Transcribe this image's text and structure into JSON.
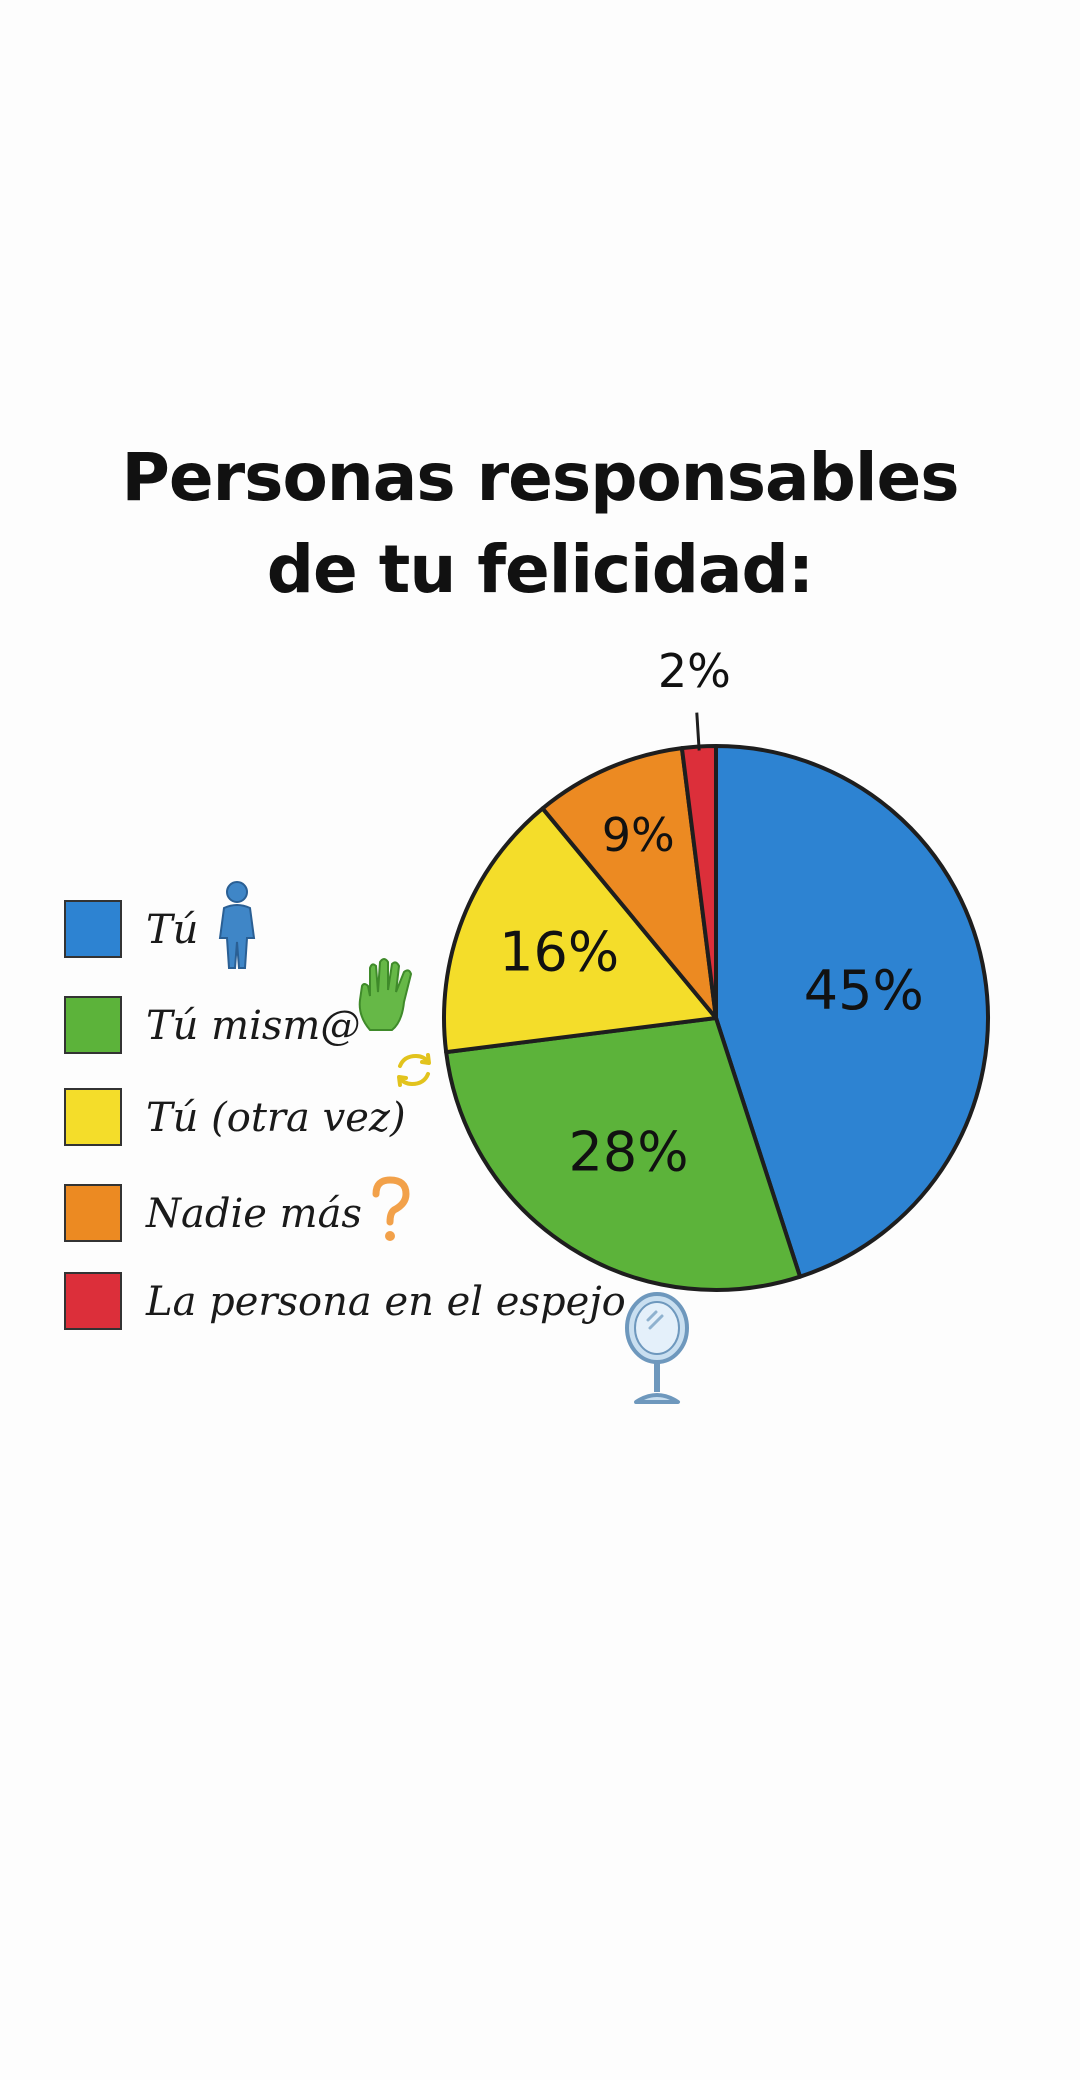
{
  "title_lines": [
    "Personas responsables",
    "de tu felicidad:"
  ],
  "chart_data": {
    "type": "pie",
    "title": "Personas responsables de tu felicidad:",
    "slices": [
      {
        "label": "Tú",
        "value": 45,
        "display": "45%",
        "color": "#2d83d2"
      },
      {
        "label": "Tú mism@",
        "value": 28,
        "display": "28%",
        "color": "#5cb33a"
      },
      {
        "label": "Tú (otra vez)",
        "value": 16,
        "display": "16%",
        "color": "#f4dd2a"
      },
      {
        "label": "Nadie más",
        "value": 9,
        "display": "9%",
        "color": "#ec8a22"
      },
      {
        "label": "La persona en el espejo",
        "value": 2,
        "display": "2%",
        "color": "#dc2f3a"
      }
    ],
    "legend_position": "left"
  },
  "legend_icons": [
    "person-icon",
    "hand-icon",
    "repeat-arrows-icon",
    "question-mark-icon",
    "mirror-icon"
  ]
}
